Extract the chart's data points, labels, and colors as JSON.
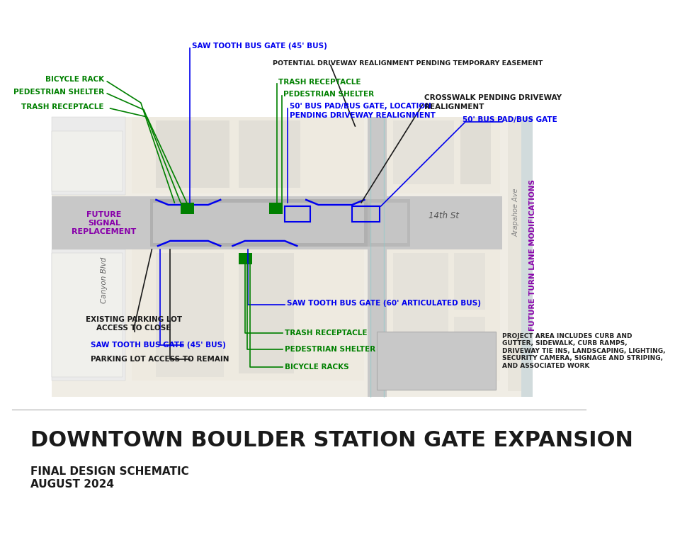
{
  "title": "DOWNTOWN BOULDER STATION GATE EXPANSION",
  "subtitle1": "FINAL DESIGN SCHEMATIC",
  "subtitle2": "AUGUST 2024",
  "bg_color": "#ffffff",
  "map_bg": "#f0ede5",
  "block_light": "#e8e5dc",
  "block_medium": "#dddad0",
  "block_white": "#f5f3ee",
  "road_color": "#c8c8c8",
  "platform_color": "#b8b8b8",
  "street_label_14th": "14th St",
  "street_label_canyon": "Canyon Blvd",
  "street_label_arapahoe": "Arapahoe Ave",
  "future_turn": "FUTURE TURN LANE MODIFICATIONS",
  "future_signal": "FUTURE\nSIGNAL\nREPLACEMENT",
  "legend_text": "PROJECT AREA INCLUDES CURB AND\nGUTTER, SIDEWALK, CURB RAMPS,\nDRIVEWAY TIE INS, LANDSCAPING, LIGHTING,\nSECURITY CAMERA, SIGNAGE AND STRIPING,\nAND ASSOCIATED WORK",
  "green_color": "#008000",
  "blue_color": "#0000ee",
  "black_color": "#1a1a1a",
  "purple_color": "#8800aa",
  "arapahoe_color": "#99bbcc",
  "dark_text": "#222222"
}
